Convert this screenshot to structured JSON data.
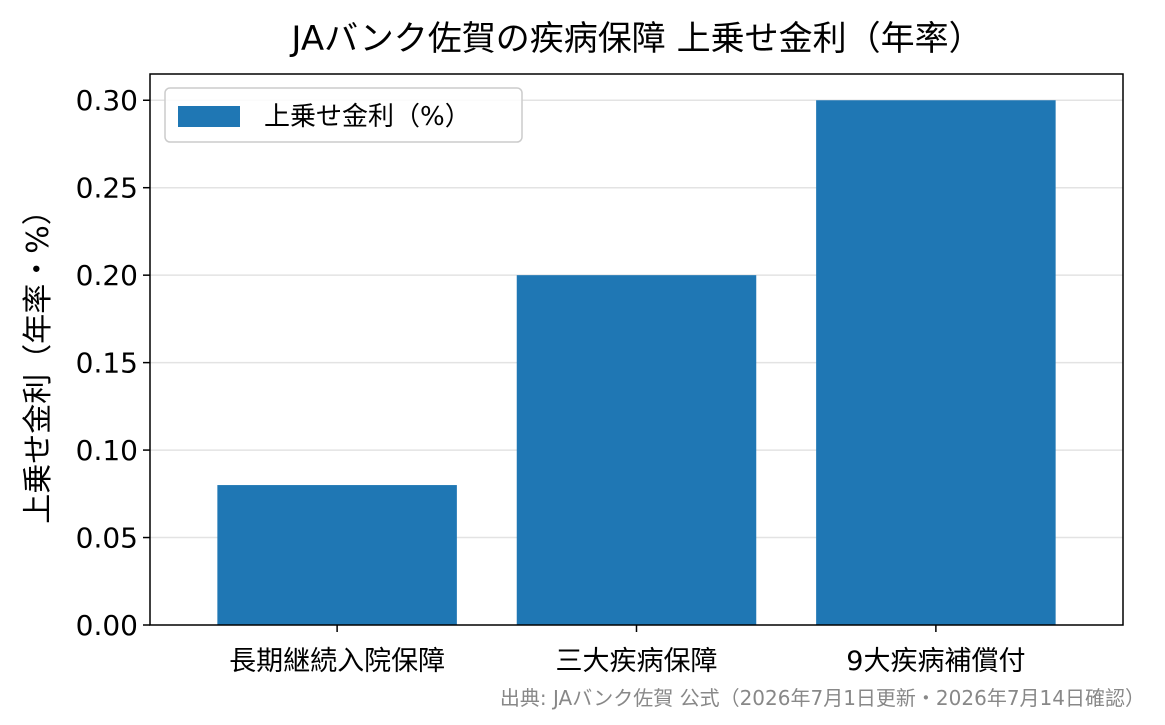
{
  "chart_data": {
    "type": "bar",
    "title": "JAバンク佐賀の疾病保障 上乗せ金利（年率）",
    "ylabel": "上乗せ金利（年率・%）",
    "xlabel": "",
    "categories": [
      "長期継続入院保障",
      "三大疾病保障",
      "9大疾病補償付"
    ],
    "series": [
      {
        "name": "上乗せ金利（%）",
        "values": [
          0.08,
          0.2,
          0.3
        ]
      }
    ],
    "ylim": [
      0,
      0.315
    ],
    "yticks": [
      "0.00",
      "0.05",
      "0.10",
      "0.15",
      "0.20",
      "0.25",
      "0.30"
    ],
    "ytick_values": [
      0,
      0.05,
      0.1,
      0.15,
      0.2,
      0.25,
      0.3
    ],
    "grid": "horizontal",
    "legend_position": "top-left",
    "bar_color": "#1f77b4",
    "source_note": "出典: JAバンク佐賀 公式（2026年7月1日更新・2026年7月14日確認）"
  }
}
